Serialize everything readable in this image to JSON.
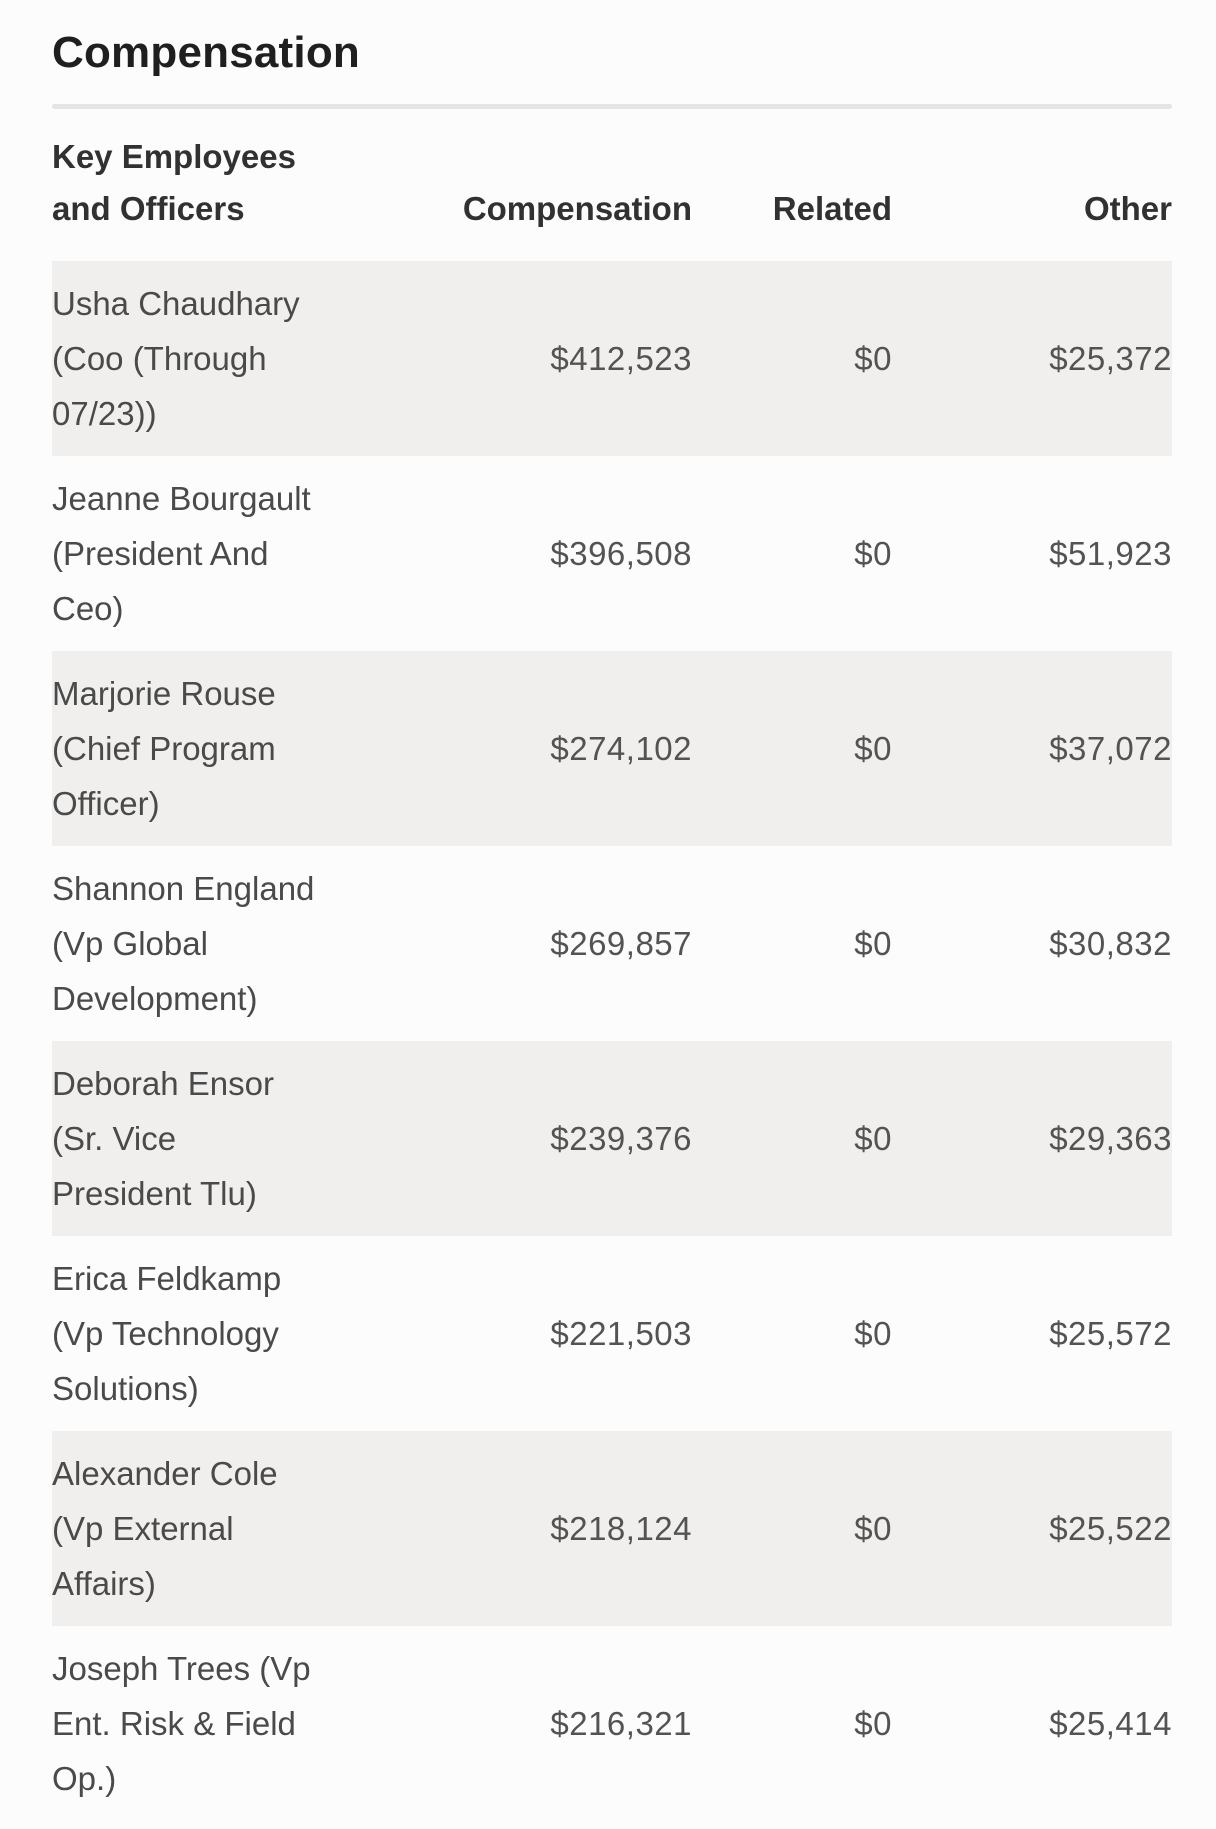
{
  "section": {
    "title": "Compensation"
  },
  "table": {
    "headers": {
      "employees": "Key Employees\nand Officers",
      "compensation": "Compensation",
      "related": "Related",
      "other": "Other"
    },
    "rows": [
      {
        "name": "Usha Chaudhary\n(Coo (Through\n07/23))",
        "compensation": "$412,523",
        "related": "$0",
        "other": "$25,372"
      },
      {
        "name": "Jeanne Bourgault\n(President And\nCeo)",
        "compensation": "$396,508",
        "related": "$0",
        "other": "$51,923"
      },
      {
        "name": "Marjorie Rouse\n(Chief Program\nOfficer)",
        "compensation": "$274,102",
        "related": "$0",
        "other": "$37,072"
      },
      {
        "name": "Shannon England\n(Vp Global\nDevelopment)",
        "compensation": "$269,857",
        "related": "$0",
        "other": "$30,832"
      },
      {
        "name": "Deborah Ensor\n(Sr. Vice\nPresident Tlu)",
        "compensation": "$239,376",
        "related": "$0",
        "other": "$29,363"
      },
      {
        "name": "Erica Feldkamp\n(Vp Technology\nSolutions)",
        "compensation": "$221,503",
        "related": "$0",
        "other": "$25,572"
      },
      {
        "name": "Alexander Cole\n(Vp External\nAffairs)",
        "compensation": "$218,124",
        "related": "$0",
        "other": "$25,522"
      },
      {
        "name": "Joseph Trees (Vp\nEnt. Risk & Field\nOp.)",
        "compensation": "$216,321",
        "related": "$0",
        "other": "$25,414"
      }
    ]
  }
}
